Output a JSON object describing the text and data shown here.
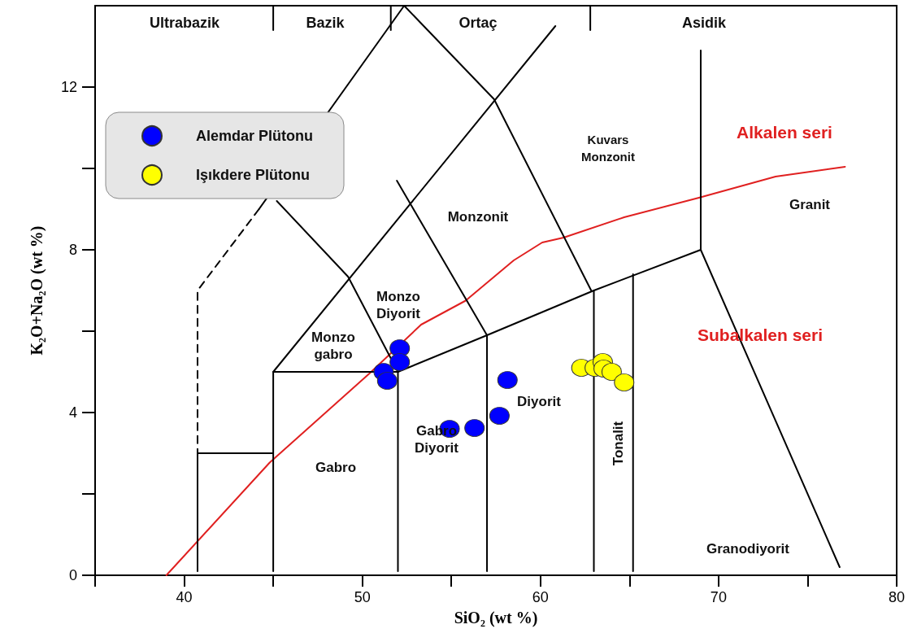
{
  "chart_data": {
    "type": "scatter",
    "xlabel": "SiO₂ (wt %)",
    "ylabel": "K₂O+Na₂O (wt %)",
    "xlim": [
      35,
      80
    ],
    "ylim": [
      0,
      14
    ],
    "xticks": [
      {
        "value": 35,
        "label": null
      },
      40,
      {
        "value": 45,
        "label": null
      },
      50,
      {
        "value": 55,
        "label": null
      },
      60,
      {
        "value": 65,
        "label": null
      },
      70,
      {
        "value": 75,
        "label": null
      },
      80
    ],
    "yticks": [
      0,
      {
        "value": 2,
        "label": null
      },
      4,
      {
        "value": 6,
        "label": null
      },
      8,
      {
        "value": 10,
        "label": null
      },
      12
    ],
    "grid": false,
    "legend": "top left",
    "series": [
      {
        "name": "Alemdar Plütonu",
        "marker": "circle",
        "color": "#0000ff",
        "x": [
          51.2,
          51.4,
          52.1,
          52.1,
          54.9,
          56.3,
          57.7,
          58.15
        ],
        "values": [
          5.0,
          4.78,
          5.58,
          5.24,
          3.6,
          3.62,
          3.92,
          4.8
        ]
      },
      {
        "name": "Işıkdere Plütonu",
        "marker": "circle",
        "color": "#ffff00",
        "x": [
          62.3,
          63.05,
          63.5,
          63.55,
          64.0,
          64.7
        ],
        "values": [
          5.1,
          5.1,
          5.24,
          5.08,
          5.0,
          4.74
        ]
      },
      {
        "type": "line",
        "color": "#e02020",
        "x": [
          39,
          44.8,
          50.4,
          53.3,
          55.8,
          58.5,
          60.1,
          61.3,
          64.7,
          68.9,
          73.2,
          77.1
        ],
        "values": [
          0,
          2.77,
          4.96,
          6.16,
          6.75,
          7.74,
          8.18,
          8.3,
          8.8,
          9.28,
          9.8,
          10.04
        ]
      },
      {
        "type": "line",
        "color": "#000000",
        "x": [
          52.35,
          44.2
        ],
        "values": [
          14,
          9.0
        ]
      },
      {
        "type": "line",
        "color": "#000000",
        "line_style": "dashed",
        "x": [
          44.2,
          40.75,
          40.75
        ],
        "values": [
          9.0,
          7.0,
          3.0
        ]
      },
      {
        "type": "line",
        "color": "#000000",
        "x": [
          52.35,
          57.4,
          62.85
        ],
        "values": [
          14,
          11.7,
          7.0
        ]
      },
      {
        "type": "line",
        "color": "#000000",
        "x": [
          60.84,
          45
        ],
        "values": [
          13.5,
          5.0
        ]
      },
      {
        "type": "line",
        "color": "#000000",
        "x": [
          45.2,
          49.2,
          52
        ],
        "values": [
          9.2,
          7.34,
          5.0
        ]
      },
      {
        "type": "line",
        "color": "#000000",
        "x": [
          51.94,
          57
        ],
        "values": [
          9.7,
          5.9
        ]
      },
      {
        "type": "line",
        "color": "#000000",
        "x": [
          52,
          57,
          63,
          69
        ],
        "values": [
          5.0,
          5.9,
          7.0,
          8.0
        ]
      },
      {
        "type": "line",
        "color": "#000000",
        "x": [
          40.75,
          40.75,
          45
        ],
        "values": [
          0.1,
          3.0,
          3.0
        ]
      },
      {
        "type": "line",
        "color": "#000000",
        "x": [
          45,
          45,
          52,
          52
        ],
        "values": [
          0.1,
          5.0,
          5.0,
          0.1
        ]
      },
      {
        "type": "line",
        "color": "#000000",
        "x": [
          57,
          57
        ],
        "values": [
          0.1,
          5.9
        ]
      },
      {
        "type": "line",
        "color": "#000000",
        "x": [
          63,
          63
        ],
        "values": [
          0.1,
          7.0
        ]
      },
      {
        "type": "line",
        "color": "#000000",
        "x": [
          65.2,
          65.2
        ],
        "values": [
          0.1,
          7.4
        ]
      },
      {
        "type": "line",
        "color": "#000000",
        "x": [
          69,
          69,
          76.8
        ],
        "values": [
          12.9,
          8.0,
          0.2
        ]
      },
      {
        "type": "line",
        "color": "#000000",
        "x": [
          45,
          45
        ],
        "values": [
          14,
          13.4
        ]
      },
      {
        "type": "line",
        "color": "#000000",
        "x": [
          51.6,
          51.6
        ],
        "values": [
          14,
          13.4
        ]
      },
      {
        "type": "line",
        "color": "#000000",
        "x": [
          62.8,
          62.8
        ],
        "values": [
          14,
          13.4
        ]
      }
    ],
    "annotations": [
      "Ultrabazik",
      "Bazik",
      "Ortaç",
      "Asidik",
      "Monzo\ngabro",
      "Monzo\nDiyorit",
      "Monzonit",
      "Kuvars\nMonzonit",
      "Gabro",
      "Gabro\nDiyorit",
      "Diyorit",
      "Tonalit",
      "Granit",
      "Granodiyorit",
      "Alkalen seri",
      "Subalkalen seri"
    ]
  }
}
